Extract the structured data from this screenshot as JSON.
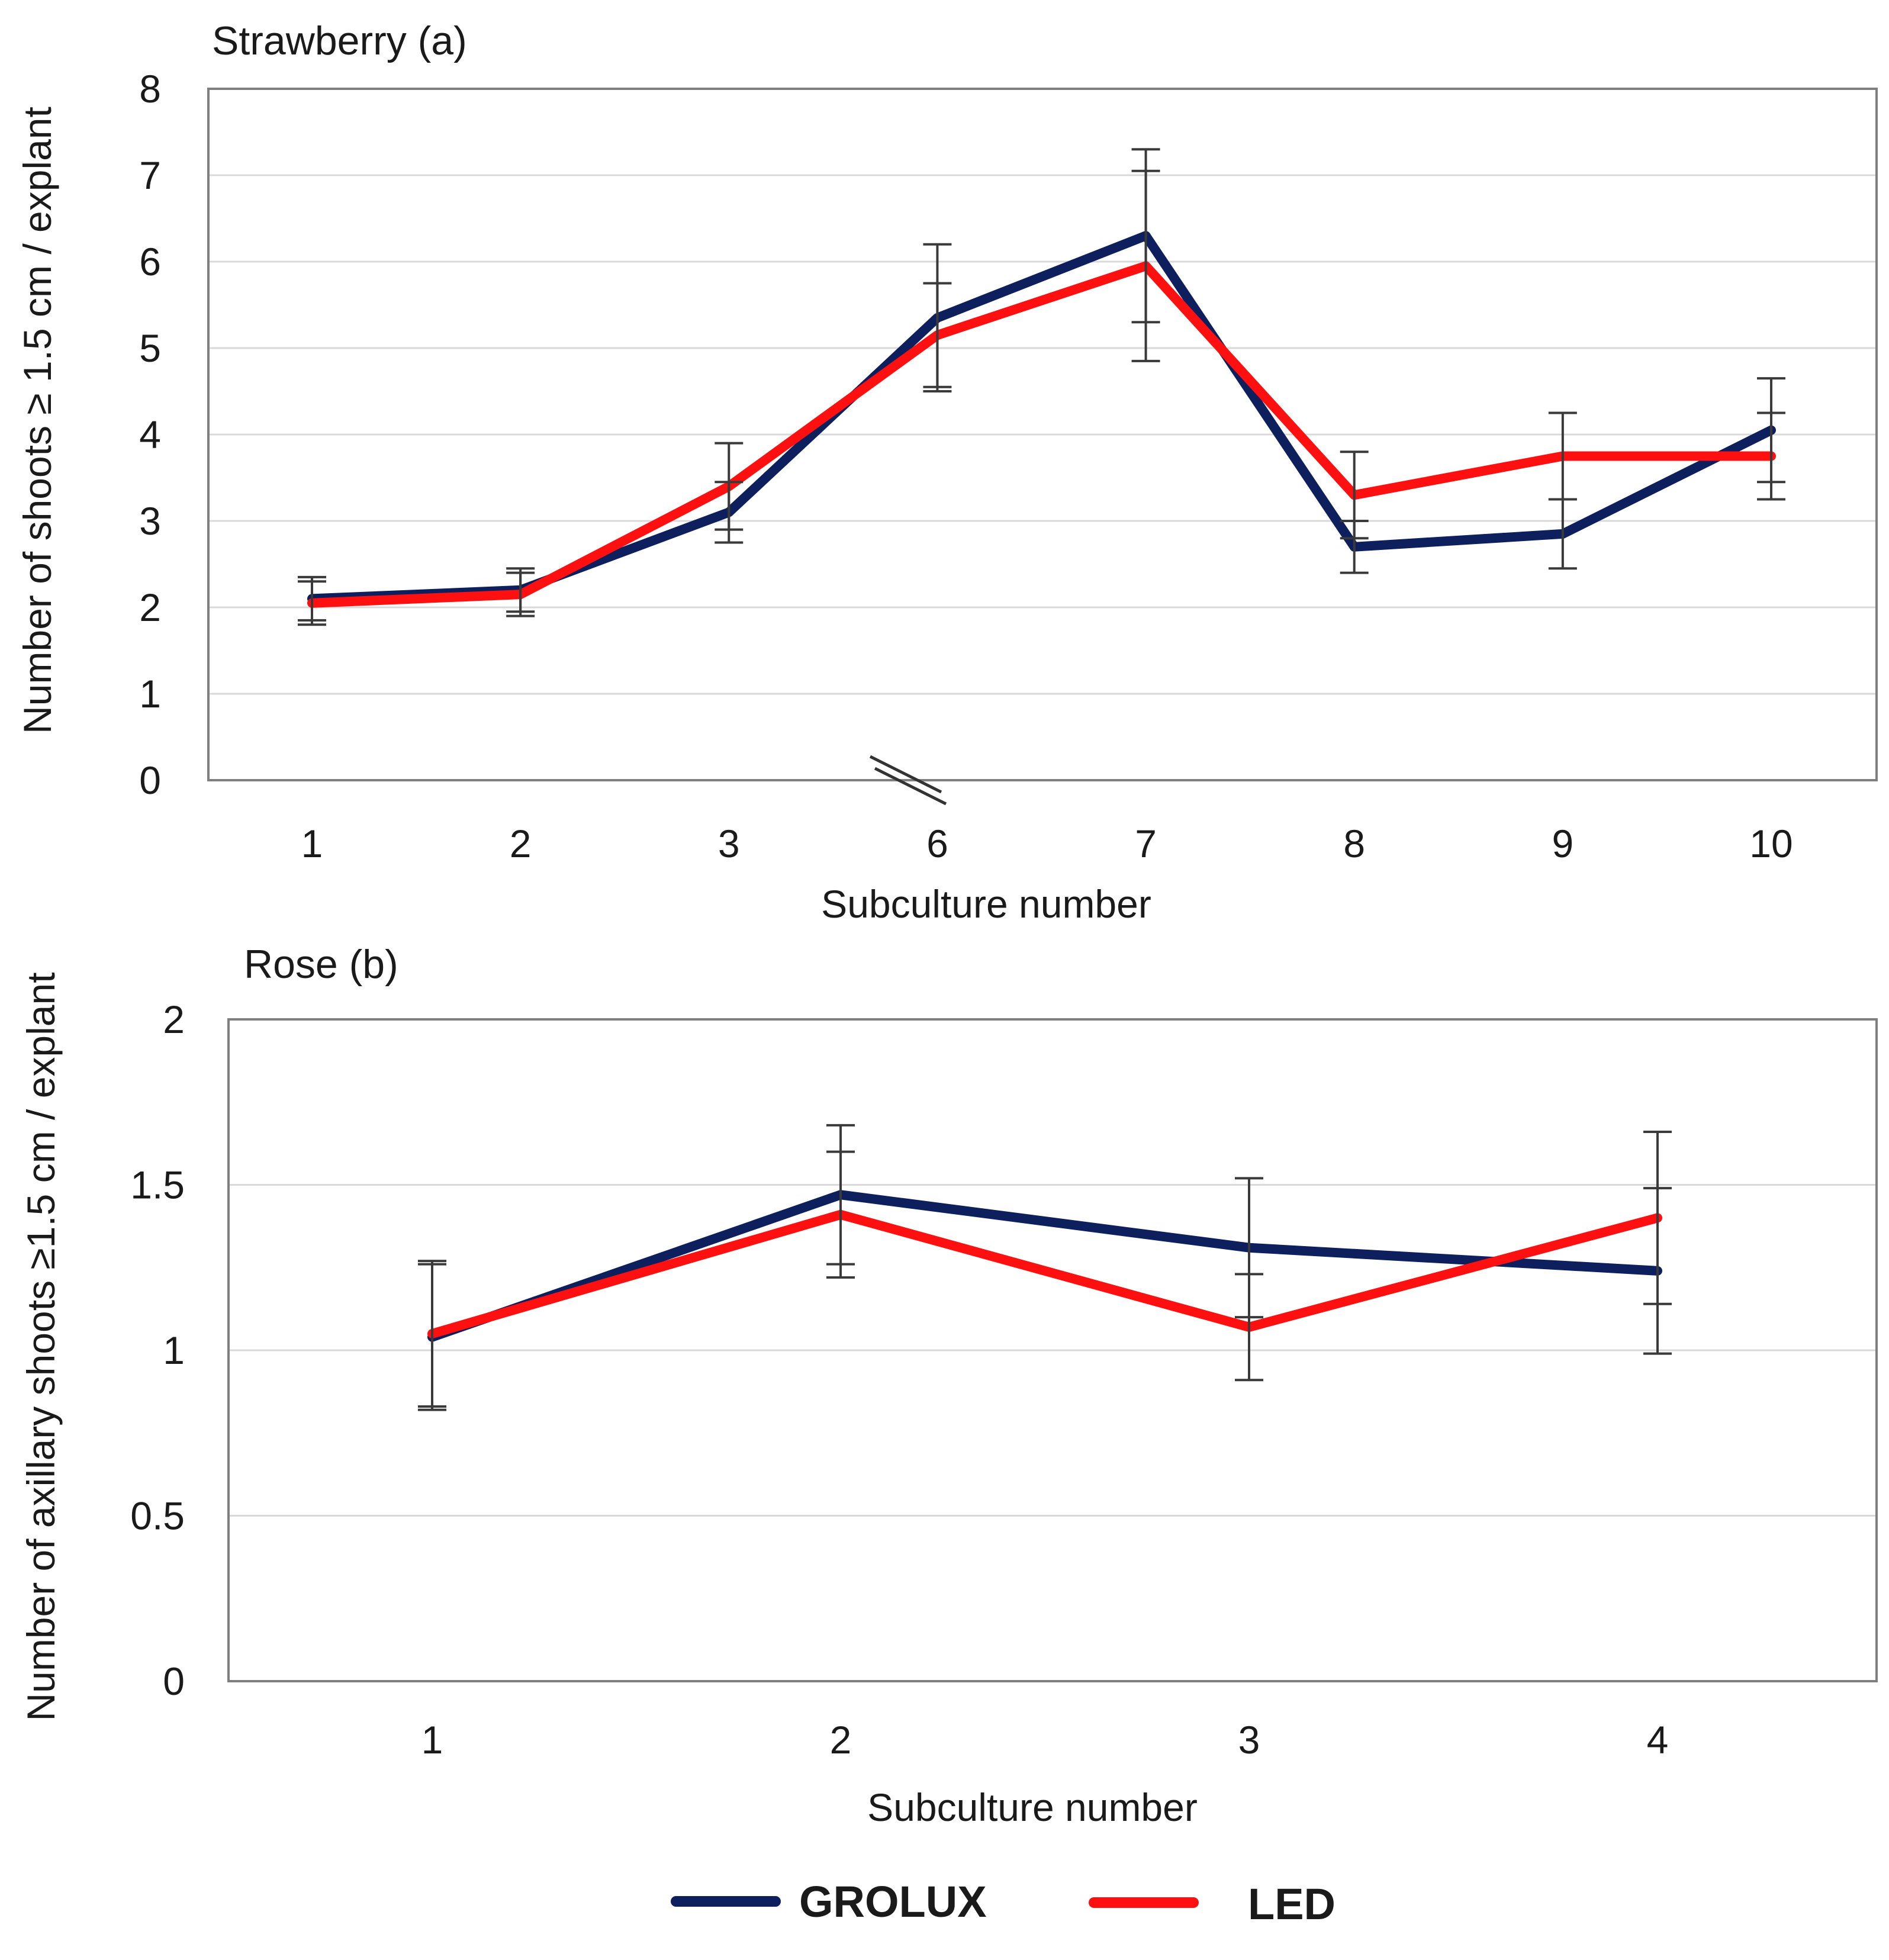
{
  "colors": {
    "grolux": "#0d1f5c",
    "led": "#ff1010"
  },
  "legend": [
    {
      "key": "grolux",
      "label": "GROLUX"
    },
    {
      "key": "led",
      "label": "LED"
    }
  ],
  "chart_data": [
    {
      "type": "line",
      "title": "Strawberry   (a)",
      "xlabel": "Subculture number",
      "ylabel": "Number of shoots ≥ 1.5 cm / explant",
      "categories": [
        "1",
        "2",
        "3",
        "6",
        "7",
        "8",
        "9",
        "10"
      ],
      "ylim": [
        0,
        8
      ],
      "yticks": [
        0,
        1,
        2,
        3,
        4,
        5,
        6,
        7,
        8
      ],
      "ytick_labels": [
        "0",
        "1",
        "2",
        "3",
        "4",
        "5",
        "6",
        "7",
        "8"
      ],
      "grid": true,
      "axis_break_between": [
        "3",
        "6"
      ],
      "series": [
        {
          "key": "grolux",
          "name": "GROLUX",
          "values": [
            2.1,
            2.2,
            3.1,
            5.35,
            6.3,
            2.7,
            2.85,
            4.05
          ],
          "error": [
            0.25,
            0.25,
            0.35,
            0.85,
            1.0,
            0.3,
            0.4,
            0.6
          ]
        },
        {
          "key": "led",
          "name": "LED",
          "values": [
            2.05,
            2.15,
            3.4,
            5.15,
            5.95,
            3.3,
            3.75,
            3.75
          ],
          "error": [
            0.25,
            0.25,
            0.5,
            0.6,
            1.1,
            0.5,
            0.5,
            0.5
          ]
        }
      ]
    },
    {
      "type": "line",
      "title": "Rose (b)",
      "xlabel": "Subculture number",
      "ylabel": "Number of axillary shoots ≥1.5 cm / explant",
      "categories": [
        "1",
        "2",
        "3",
        "4"
      ],
      "ylim": [
        0,
        2
      ],
      "yticks": [
        0,
        0.5,
        1,
        1.5,
        2
      ],
      "ytick_labels": [
        "0",
        "0.5",
        "1",
        "1.5",
        "2"
      ],
      "grid": true,
      "series": [
        {
          "key": "grolux",
          "name": "GROLUX",
          "values": [
            1.04,
            1.47,
            1.31,
            1.24
          ],
          "error": [
            0.22,
            0.21,
            0.21,
            0.25
          ]
        },
        {
          "key": "led",
          "name": "LED",
          "values": [
            1.05,
            1.41,
            1.07,
            1.4
          ],
          "error": [
            0.22,
            0.19,
            0.16,
            0.26
          ]
        }
      ]
    }
  ]
}
